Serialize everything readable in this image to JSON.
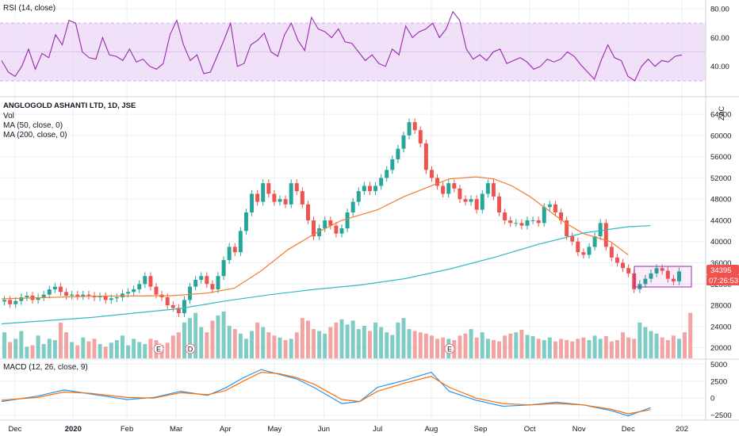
{
  "colors": {
    "up": "#26a69a",
    "down": "#ef5350",
    "vol_up": "#7fccc4",
    "vol_down": "#f4a3a3",
    "rsi_line": "#9c27b0",
    "rsi_band": "#e9d4f7",
    "ma50": "#f57c2b",
    "ma200": "#31b8c6",
    "macd": "#2196f3",
    "signal": "#ff6d00",
    "grid": "#eceff2",
    "price_tag": "#ef5350",
    "box": "#9c27b0"
  },
  "legend": {
    "rsi": "RSI (14, close)",
    "symbol": "ANGLOGOLD ASHANTI LTD, 1D, JSE",
    "vol": "Vol",
    "ma50": "MA (50, close, 0)",
    "ma200": "MA (200, close, 0)",
    "macd": "MACD (12, 26, close, 9)"
  },
  "price_axis": {
    "currency": "ZAC",
    "last_price": "34395",
    "countdown": "07:26:53"
  },
  "event_markers": [
    "E",
    "D",
    "E"
  ],
  "chart_data": [
    {
      "type": "line",
      "name": "rsi",
      "title": "RSI (14, close)",
      "ylim": [
        20,
        85
      ],
      "ticks": [
        "80.00",
        "60.00",
        "40.00"
      ],
      "tick_values": [
        80,
        60,
        40
      ],
      "band": [
        30,
        70
      ],
      "values": [
        44,
        36,
        33,
        40,
        52,
        38,
        49,
        46,
        62,
        55,
        72,
        70,
        50,
        46,
        45,
        60,
        48,
        47,
        44,
        52,
        43,
        45,
        40,
        38,
        42,
        62,
        72,
        55,
        44,
        48,
        35,
        36,
        47,
        58,
        70,
        40,
        42,
        55,
        58,
        63,
        50,
        47,
        62,
        70,
        58,
        51,
        74,
        66,
        64,
        60,
        66,
        57,
        56,
        50,
        44,
        48,
        42,
        40,
        52,
        48,
        68,
        60,
        64,
        66,
        70,
        60,
        66,
        78,
        72,
        52,
        45,
        48,
        44,
        50,
        52,
        42,
        44,
        46,
        43,
        38,
        40,
        45,
        43,
        45,
        50,
        47,
        41,
        36,
        31,
        44,
        55,
        46,
        44,
        33,
        30,
        40,
        45,
        40,
        44,
        43,
        47,
        48
      ]
    },
    {
      "type": "candlestick",
      "name": "price",
      "title": "ANGLOGOLD ASHANTI LTD, 1D, JSE",
      "ylim": [
        18000,
        67000
      ],
      "ticks": [
        "64000",
        "60000",
        "56000",
        "52000",
        "48000",
        "44000",
        "40000",
        "36000",
        "32000",
        "28000",
        "24000",
        "20000"
      ],
      "tick_values": [
        64000,
        60000,
        56000,
        52000,
        48000,
        44000,
        40000,
        36000,
        32000,
        28000,
        24000,
        20000
      ],
      "x_ticks": [
        "Dec",
        "2020",
        "Feb",
        "Mar",
        "Apr",
        "May",
        "Jun",
        "Jul",
        "Aug",
        "Sep",
        "Oct",
        "Nov",
        "Dec",
        "202"
      ],
      "x_tick_index": [
        3,
        16,
        28,
        39,
        50,
        61,
        72,
        84,
        96,
        107,
        118,
        129,
        140,
        152
      ],
      "close": [
        29000,
        28200,
        28800,
        29500,
        29800,
        29000,
        29500,
        30000,
        31000,
        31500,
        30500,
        29800,
        30000,
        29700,
        30000,
        29800,
        29500,
        29700,
        29000,
        29300,
        29500,
        30200,
        30500,
        31000,
        32000,
        33500,
        31500,
        30000,
        29500,
        28000,
        27500,
        26500,
        29000,
        31500,
        32800,
        33500,
        32000,
        31000,
        33500,
        36500,
        39000,
        38000,
        42000,
        45500,
        49000,
        47500,
        51000,
        49000,
        47500,
        48000,
        47000,
        51000,
        49500,
        47000,
        44000,
        41000,
        42500,
        44000,
        43000,
        41500,
        42500,
        45500,
        47500,
        49500,
        50500,
        49500,
        50500,
        52000,
        53500,
        55500,
        57500,
        60000,
        62500,
        61000,
        58500,
        53500,
        52000,
        50500,
        49000,
        51000,
        50000,
        48000,
        47500,
        48000,
        46000,
        49000,
        51000,
        48500,
        45500,
        44000,
        43500,
        43500,
        43000,
        44000,
        44000,
        43500,
        46500,
        47000,
        45500,
        44000,
        41000,
        40000,
        38000,
        37500,
        39000,
        41000,
        43500,
        39000,
        37000,
        36000,
        35000,
        34000,
        31000,
        32000,
        33000,
        34000,
        35000,
        34500,
        33000,
        32500,
        34395
      ],
      "spread": 1200
    },
    {
      "type": "line",
      "name": "ma50",
      "title": "MA (50, close, 0)",
      "x": [
        0,
        20,
        38,
        46,
        52,
        58,
        64,
        70,
        76,
        84,
        90,
        96,
        100,
        106,
        110,
        114,
        118,
        122,
        126,
        130,
        136,
        140
      ],
      "values": [
        29200,
        29700,
        29800,
        30300,
        31200,
        34500,
        38500,
        41500,
        44000,
        46000,
        48500,
        50500,
        51800,
        52200,
        51800,
        50500,
        48500,
        46000,
        43500,
        41500,
        40000,
        37500
      ]
    },
    {
      "type": "line",
      "name": "ma200",
      "title": "MA (200, close, 0)",
      "x": [
        0,
        20,
        40,
        50,
        60,
        70,
        80,
        90,
        100,
        110,
        120,
        130,
        140,
        145
      ],
      "values": [
        24500,
        25700,
        27400,
        28800,
        30000,
        31000,
        31800,
        33000,
        34800,
        37000,
        39500,
        41600,
        42800,
        43000
      ]
    },
    {
      "type": "bar",
      "name": "volume",
      "title": "Vol",
      "ylim": [
        0,
        100
      ],
      "values": [
        40,
        25,
        30,
        42,
        18,
        20,
        35,
        22,
        30,
        28,
        55,
        40,
        25,
        20,
        32,
        26,
        30,
        22,
        18,
        24,
        28,
        35,
        20,
        30,
        25,
        22,
        30,
        28,
        20,
        24,
        35,
        40,
        55,
        62,
        70,
        48,
        40,
        58,
        66,
        72,
        50,
        45,
        38,
        30,
        42,
        55,
        48,
        40,
        35,
        32,
        28,
        30,
        40,
        62,
        58,
        45,
        42,
        38,
        48,
        55,
        60,
        52,
        58,
        45,
        50,
        42,
        55,
        48,
        40,
        36,
        55,
        62,
        45,
        42,
        40,
        38,
        35,
        30,
        32,
        30,
        28,
        35,
        38,
        45,
        32,
        40,
        30,
        28,
        26,
        35,
        38,
        40,
        44,
        36,
        34,
        30,
        28,
        32,
        26,
        30,
        28,
        26,
        30,
        32,
        28,
        35,
        30,
        34,
        26,
        28,
        40,
        32,
        30,
        55,
        48,
        42,
        38,
        32,
        28,
        35,
        30,
        40,
        70
      ]
    },
    {
      "type": "line",
      "name": "macd",
      "title": "MACD (12, 26, close, 9)",
      "ylim": [
        -3000,
        5500
      ],
      "ticks": [
        "5000",
        "2500",
        "0",
        "−2500"
      ],
      "tick_values": [
        5000,
        2500,
        0,
        -2500
      ],
      "x": [
        0,
        8,
        14,
        20,
        28,
        34,
        40,
        46,
        50,
        54,
        58,
        62,
        66,
        70,
        76,
        80,
        84,
        90,
        96,
        100,
        106,
        112,
        118,
        124,
        130,
        136,
        140,
        145
      ],
      "macd": [
        -500,
        300,
        1200,
        600,
        -200,
        100,
        1000,
        400,
        1500,
        3000,
        4200,
        3500,
        2800,
        1500,
        -800,
        -500,
        1600,
        2600,
        3800,
        1000,
        -300,
        -1200,
        -1000,
        -600,
        -1000,
        -1800,
        -2600,
        -1400
      ],
      "signal": [
        -300,
        100,
        900,
        700,
        100,
        0,
        800,
        500,
        1100,
        2500,
        3800,
        3600,
        3000,
        2000,
        -200,
        -500,
        1000,
        2200,
        3200,
        1600,
        0,
        -800,
        -1000,
        -800,
        -1000,
        -1600,
        -2300,
        -1700
      ]
    }
  ]
}
